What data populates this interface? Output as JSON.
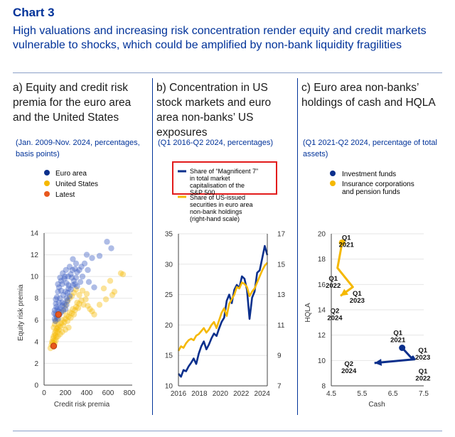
{
  "header": {
    "chart_number": "Chart 3",
    "title": "High valuations and increasing risk concentration render equity and credit markets vulnerable to shocks, which could be amplified by non-bank liquidity fragilities"
  },
  "colors": {
    "navy": "#0a2f8c",
    "blue_scatter": "#3d5fc4",
    "yellow": "#f5b800",
    "orange": "#e8581e",
    "red_box": "#e21b1b"
  },
  "panels": [
    {
      "title": "a) Equity and credit risk premia for the euro area and the United States",
      "subtitle": "(Jan. 2009-Nov. 2024, percentages, basis points)",
      "legend": [
        "Euro area",
        "United States",
        "Latest"
      ]
    },
    {
      "title": "b) Concentration in US stock markets and euro area non-banks’ US exposures",
      "subtitle": "(Q1 2016-Q2 2024, percentages)",
      "legend": [
        "Share of “Magnificent 7” in total market capitalisation of the S&P 500",
        "Share of US-issued securities in euro area non-bank holdings (right-hand scale)"
      ]
    },
    {
      "title": "c) Euro area non-banks’ holdings of cash and HQLA",
      "subtitle": "(Q1 2021-Q2 2024, percentage of total assets)",
      "legend": [
        "Investment funds",
        "Insurance corporations and pension funds"
      ]
    }
  ],
  "chart_data": [
    {
      "type": "scatter",
      "xlabel": "Credit risk premia",
      "ylabel": "Equity risk premia",
      "xlim": [
        0,
        800
      ],
      "ylim": [
        0,
        14
      ],
      "xticks": [
        0,
        200,
        400,
        600,
        800
      ],
      "yticks": [
        0,
        2,
        4,
        6,
        8,
        10,
        12,
        14
      ],
      "series": [
        {
          "name": "Euro area",
          "points": [
            [
              160,
              9.6
            ],
            [
              170,
              9.3
            ],
            [
              190,
              9.8
            ],
            [
              210,
              9.4
            ],
            [
              230,
              9.2
            ],
            [
              250,
              10.2
            ],
            [
              265,
              10.6
            ],
            [
              290,
              10.7
            ],
            [
              310,
              10.4
            ],
            [
              330,
              10.6
            ],
            [
              350,
              10.9
            ],
            [
              380,
              11.2
            ],
            [
              410,
              10.6
            ],
            [
              240,
              10.9
            ],
            [
              270,
              11.6
            ],
            [
              300,
              11.2
            ],
            [
              400,
              12.0
            ],
            [
              450,
              11.7
            ],
            [
              520,
              11.9
            ],
            [
              590,
              13.2
            ],
            [
              630,
              12.6
            ],
            [
              110,
              7.5
            ],
            [
              120,
              8.1
            ],
            [
              130,
              8.6
            ],
            [
              140,
              9.0
            ],
            [
              150,
              8.0
            ],
            [
              160,
              8.7
            ],
            [
              170,
              7.6
            ],
            [
              180,
              8.3
            ],
            [
              200,
              8.6
            ],
            [
              210,
              8.0
            ],
            [
              220,
              8.5
            ],
            [
              230,
              8.9
            ],
            [
              240,
              8.2
            ],
            [
              250,
              8.8
            ],
            [
              270,
              9.2
            ],
            [
              280,
              9.6
            ],
            [
              290,
              9.3
            ],
            [
              310,
              9.1
            ],
            [
              340,
              9.5
            ],
            [
              100,
              6.9
            ],
            [
              110,
              6.5
            ],
            [
              115,
              7.2
            ],
            [
              120,
              6.3
            ],
            [
              125,
              7.0
            ],
            [
              130,
              6.1
            ],
            [
              135,
              6.8
            ],
            [
              140,
              7.6
            ],
            [
              145,
              6.5
            ],
            [
              150,
              7.1
            ],
            [
              160,
              6.7
            ],
            [
              170,
              7.3
            ],
            [
              180,
              6.9
            ],
            [
              190,
              7.5
            ],
            [
              200,
              7.0
            ],
            [
              210,
              7.4
            ],
            [
              220,
              7.8
            ],
            [
              100,
              6.1
            ],
            [
              105,
              5.9
            ],
            [
              110,
              7.9
            ],
            [
              95,
              6.6
            ],
            [
              130,
              9.3
            ],
            [
              150,
              9.9
            ],
            [
              175,
              10.3
            ],
            [
              195,
              10.0
            ],
            [
              205,
              10.6
            ],
            [
              225,
              10.0
            ],
            [
              260,
              9.9
            ],
            [
              300,
              9.9
            ],
            [
              360,
              10.0
            ],
            [
              420,
              9.5
            ],
            [
              470,
              9.0
            ]
          ]
        },
        {
          "name": "United States",
          "points": [
            [
              60,
              3.4
            ],
            [
              70,
              3.7
            ],
            [
              75,
              4.0
            ],
            [
              80,
              3.9
            ],
            [
              85,
              4.3
            ],
            [
              90,
              4.5
            ],
            [
              95,
              4.1
            ],
            [
              100,
              4.8
            ],
            [
              105,
              4.6
            ],
            [
              110,
              5.0
            ],
            [
              115,
              4.4
            ],
            [
              120,
              5.2
            ],
            [
              125,
              4.9
            ],
            [
              130,
              5.3
            ],
            [
              135,
              5.6
            ],
            [
              140,
              5.1
            ],
            [
              150,
              5.4
            ],
            [
              160,
              5.7
            ],
            [
              170,
              6.0
            ],
            [
              180,
              5.5
            ],
            [
              190,
              5.8
            ],
            [
              200,
              6.1
            ],
            [
              210,
              6.4
            ],
            [
              220,
              5.9
            ],
            [
              230,
              6.3
            ],
            [
              240,
              6.7
            ],
            [
              250,
              6.2
            ],
            [
              260,
              6.6
            ],
            [
              270,
              7.0
            ],
            [
              280,
              6.5
            ],
            [
              290,
              6.9
            ],
            [
              300,
              7.2
            ],
            [
              310,
              7.6
            ],
            [
              320,
              7.1
            ],
            [
              330,
              7.5
            ],
            [
              350,
              7.8
            ],
            [
              370,
              7.4
            ],
            [
              390,
              7.9
            ],
            [
              410,
              7.3
            ],
            [
              430,
              7.0
            ],
            [
              450,
              6.8
            ],
            [
              470,
              6.5
            ],
            [
              100,
              5.6
            ],
            [
              110,
              5.9
            ],
            [
              120,
              6.1
            ],
            [
              90,
              5.3
            ],
            [
              100,
              3.8
            ],
            [
              110,
              4.1
            ],
            [
              130,
              4.5
            ],
            [
              150,
              4.7
            ],
            [
              170,
              4.9
            ],
            [
              200,
              5.1
            ],
            [
              230,
              5.3
            ],
            [
              180,
              6.8
            ],
            [
              200,
              7.3
            ],
            [
              220,
              7.7
            ],
            [
              240,
              8.0
            ],
            [
              260,
              8.2
            ],
            [
              280,
              8.5
            ],
            [
              300,
              8.8
            ],
            [
              330,
              8.3
            ],
            [
              360,
              8.7
            ],
            [
              400,
              8.4
            ],
            [
              560,
              8.9
            ],
            [
              640,
              8.3
            ],
            [
              720,
              10.3
            ],
            [
              740,
              10.2
            ],
            [
              620,
              9.6
            ],
            [
              520,
              7.4
            ],
            [
              580,
              7.9
            ],
            [
              660,
              8.6
            ]
          ]
        }
      ],
      "latest": [
        [
          135,
          6.5
        ],
        [
          90,
          3.6
        ]
      ]
    },
    {
      "type": "line",
      "x_start": 2016,
      "x_end": 2024.5,
      "xlim": [
        2016,
        2024.5
      ],
      "xticks": [
        2016,
        2018,
        2020,
        2022,
        2024
      ],
      "ylim": [
        10,
        35
      ],
      "yticks": [
        10,
        15,
        20,
        25,
        30,
        35
      ],
      "y2lim": [
        7,
        17
      ],
      "y2ticks": [
        7,
        9,
        11,
        13,
        15,
        17
      ],
      "series": [
        {
          "name": "Share of “Magnificent 7” in total market capitalisation of the S&P 500",
          "axis": "left",
          "values": [
            12.0,
            11.5,
            12.6,
            12.4,
            13.2,
            13.8,
            14.5,
            13.6,
            15.3,
            16.5,
            17.3,
            16.0,
            16.8,
            17.8,
            18.6,
            18.2,
            19.4,
            20.5,
            21.2,
            24.0,
            25.0,
            23.6,
            25.8,
            26.6,
            26.1,
            28.0,
            27.6,
            25.8,
            21.0,
            24.5,
            25.5,
            28.6,
            29.0,
            31.0,
            33.0,
            31.5
          ]
        },
        {
          "name": "Share of US-issued securities in euro area non-bank holdings (right-hand scale)",
          "axis": "right",
          "values": [
            9.3,
            9.6,
            9.5,
            9.8,
            10.0,
            10.1,
            10.0,
            10.3,
            10.4,
            10.6,
            10.8,
            10.5,
            10.7,
            11.0,
            11.2,
            10.8,
            11.3,
            11.8,
            12.1,
            11.6,
            12.4,
            12.7,
            13.0,
            13.5,
            13.4,
            13.8,
            13.7,
            13.5,
            12.9,
            13.2,
            13.4,
            13.8,
            14.2,
            14.6,
            14.9,
            15.1
          ]
        }
      ]
    },
    {
      "type": "line",
      "xlabel": "Cash",
      "ylabel": "HQLA",
      "xlim": [
        4.5,
        7.5
      ],
      "ylim": [
        8,
        20
      ],
      "xticks": [
        4.5,
        5.5,
        6.5,
        7.5
      ],
      "yticks": [
        8,
        10,
        12,
        14,
        16,
        18,
        20
      ],
      "series": [
        {
          "name": "Investment funds",
          "points": [
            [
              6.8,
              11.0
            ],
            [
              7.1,
              10.2
            ],
            [
              7.15,
              10.3
            ],
            [
              7.2,
              10.1
            ],
            [
              5.9,
              9.8
            ]
          ],
          "labels": [
            {
              "text": "Q1\n2021",
              "at": [
                6.8,
                11.0
              ]
            },
            {
              "text": "Q1\n2023",
              "at": [
                7.1,
                10.2
              ]
            },
            {
              "text": "Q1\n2022",
              "at": [
                7.2,
                10.1
              ]
            },
            {
              "text": "Q2\n2024",
              "at": [
                5.9,
                9.8
              ]
            }
          ]
        },
        {
          "name": "Insurance corporations and pension funds",
          "points": [
            [
              4.85,
              19.3
            ],
            [
              4.7,
              17.3
            ],
            [
              5.2,
              15.8
            ],
            [
              4.8,
              15.1
            ]
          ],
          "labels": [
            {
              "text": "Q1\n2021",
              "at": [
                4.85,
                19.3
              ]
            },
            {
              "text": "Q1\n2022",
              "at": [
                4.7,
                17.3
              ]
            },
            {
              "text": "Q1\n2023",
              "at": [
                5.2,
                15.8
              ]
            },
            {
              "text": "Q2\n2024",
              "at": [
                4.8,
                15.1
              ]
            }
          ]
        }
      ]
    }
  ]
}
